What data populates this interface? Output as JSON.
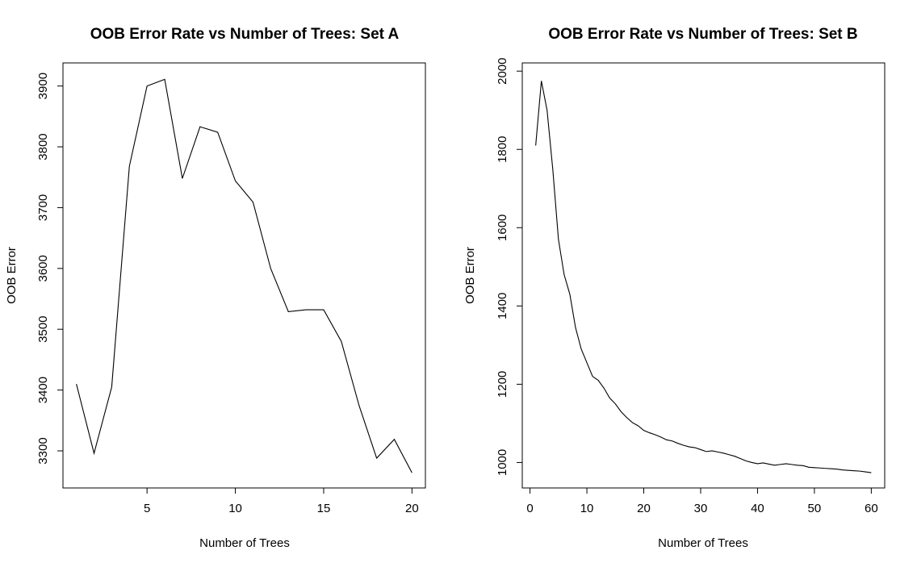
{
  "chart_data": [
    {
      "type": "line",
      "title": "OOB Error Rate vs Number of Trees: Set A",
      "xlabel": "Number of Trees",
      "ylabel": "OOB Error",
      "xlim": [
        0.24,
        20.76
      ],
      "ylim": [
        3239,
        3938
      ],
      "xticks": [
        5,
        10,
        15,
        20
      ],
      "yticks": [
        3300,
        3400,
        3500,
        3600,
        3700,
        3800,
        3900
      ],
      "grid": false,
      "series": [
        {
          "x": [
            1,
            2,
            3,
            4,
            5,
            6,
            7,
            8,
            9,
            10,
            11,
            12,
            13,
            14,
            15,
            16,
            17,
            18,
            19,
            20
          ],
          "y": [
            3410,
            3296,
            3405,
            3768,
            3900,
            3911,
            3748,
            3833,
            3824,
            3744,
            3709,
            3600,
            3529,
            3532,
            3532,
            3480,
            3375,
            3288,
            3319,
            3264
          ]
        }
      ]
    },
    {
      "type": "line",
      "title": "OOB Error Rate vs Number of Trees: Set B",
      "xlabel": "Number of Trees",
      "ylabel": "OOB Error",
      "xlim": [
        -1.36,
        62.36
      ],
      "ylim": [
        935,
        2021
      ],
      "xticks": [
        0,
        10,
        20,
        30,
        40,
        50,
        60
      ],
      "yticks": [
        1000,
        1200,
        1400,
        1600,
        1800,
        2000
      ],
      "grid": false,
      "series": [
        {
          "x": [
            1,
            2,
            3,
            4,
            5,
            6,
            7,
            8,
            9,
            10,
            11,
            12,
            13,
            14,
            15,
            16,
            17,
            18,
            19,
            20,
            21,
            22,
            23,
            24,
            25,
            26,
            27,
            28,
            29,
            30,
            31,
            32,
            33,
            34,
            35,
            36,
            37,
            38,
            39,
            40,
            41,
            42,
            43,
            44,
            45,
            46,
            47,
            48,
            49,
            50,
            51,
            52,
            53,
            54,
            55,
            56,
            57,
            58,
            59,
            60
          ],
          "y": [
            1810,
            1975,
            1900,
            1750,
            1570,
            1480,
            1430,
            1345,
            1290,
            1255,
            1220,
            1210,
            1190,
            1165,
            1150,
            1130,
            1115,
            1102,
            1094,
            1082,
            1076,
            1071,
            1065,
            1058,
            1055,
            1049,
            1044,
            1040,
            1038,
            1033,
            1028,
            1030,
            1027,
            1024,
            1020,
            1016,
            1010,
            1004,
            1000,
            997,
            999,
            996,
            993,
            995,
            997,
            995,
            993,
            992,
            988,
            987,
            986,
            985,
            984,
            983,
            981,
            980,
            979,
            978,
            976,
            974
          ]
        }
      ]
    }
  ]
}
